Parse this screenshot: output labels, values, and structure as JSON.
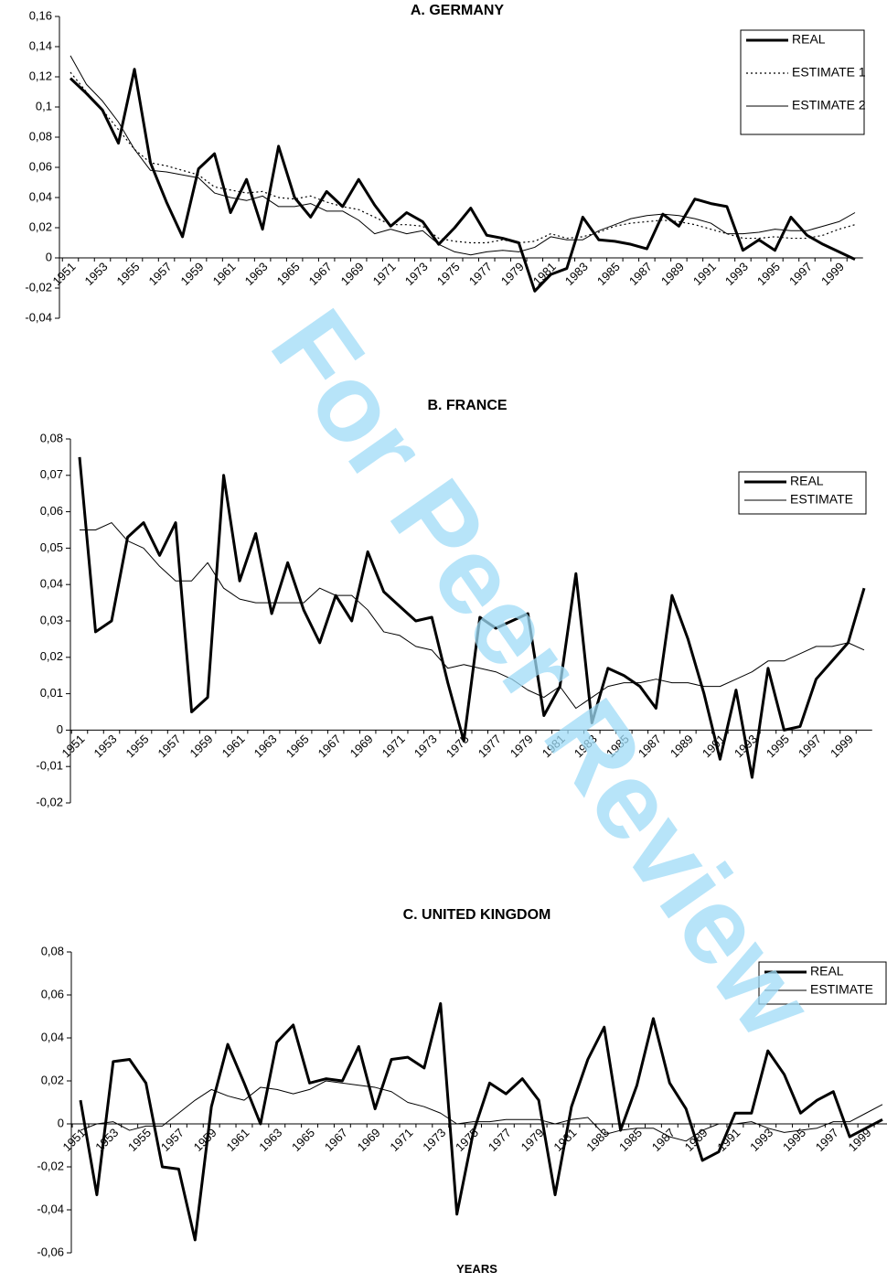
{
  "watermark": "For Peer Review",
  "chart_data": [
    {
      "type": "line",
      "title": "A. GERMANY",
      "legend": "upper right",
      "categories": [
        "1951",
        null,
        "1953",
        null,
        "1955",
        null,
        "1957",
        null,
        "1959",
        null,
        "1961",
        null,
        "1963",
        null,
        "1965",
        null,
        "1967",
        null,
        "1969",
        null,
        "1971",
        null,
        "1973",
        null,
        "1975",
        null,
        "1977",
        null,
        "1979",
        null,
        "1981",
        null,
        "1983",
        null,
        "1985",
        null,
        "1987",
        null,
        "1989",
        null,
        "1991",
        null,
        "1993",
        null,
        "1995",
        null,
        "1997",
        null,
        "1999",
        null
      ],
      "ylim": [
        -0.04,
        0.16
      ],
      "yticks": [
        {
          "value": -0.04,
          "label": "-0,04"
        },
        {
          "value": -0.02,
          "label": "-0,02"
        },
        0,
        {
          "value": 0.02,
          "label": "0,02"
        },
        {
          "value": 0.04,
          "label": "0,04"
        },
        {
          "value": 0.06,
          "label": "0,06"
        },
        {
          "value": 0.08,
          "label": "0,08"
        },
        {
          "value": 0.1,
          "label": "0,1"
        },
        {
          "value": 0.12,
          "label": "0,12"
        },
        {
          "value": 0.14,
          "label": "0,14"
        },
        {
          "value": 0.16,
          "label": "0,16"
        }
      ],
      "series": [
        {
          "name": "REAL",
          "color": "#000000",
          "style": "thick",
          "values": [
            0.119,
            0.109,
            0.098,
            0.076,
            0.125,
            0.063,
            0.037,
            0.014,
            0.059,
            0.069,
            0.03,
            0.052,
            0.019,
            0.074,
            0.04,
            0.027,
            0.044,
            0.034,
            0.052,
            0.035,
            0.021,
            0.03,
            0.024,
            0.009,
            0.02,
            0.033,
            0.015,
            0.013,
            0.01,
            -0.022,
            -0.011,
            -0.007,
            0.027,
            0.012,
            0.011,
            0.009,
            0.006,
            0.029,
            0.021,
            0.039,
            0.036,
            0.034,
            0.005,
            0.012,
            0.005,
            0.027,
            0.015,
            0.009,
            0.004,
            -0.001
          ]
        },
        {
          "name": "ESTIMATE 1",
          "color": "#000000",
          "style": "dotted",
          "values": [
            0.123,
            0.11,
            0.098,
            0.085,
            0.072,
            0.063,
            0.061,
            0.058,
            0.055,
            0.047,
            0.045,
            0.043,
            0.044,
            0.04,
            0.039,
            0.041,
            0.037,
            0.034,
            0.032,
            0.027,
            0.022,
            0.022,
            0.021,
            0.013,
            0.011,
            0.01,
            0.01,
            0.012,
            0.01,
            0.011,
            0.016,
            0.013,
            0.014,
            0.017,
            0.021,
            0.023,
            0.024,
            0.025,
            0.024,
            0.022,
            0.019,
            0.016,
            0.013,
            0.013,
            0.014,
            0.013,
            0.013,
            0.015,
            0.019,
            0.022
          ]
        },
        {
          "name": "ESTIMATE 2",
          "color": "#000000",
          "style": "thin",
          "values": [
            0.134,
            0.115,
            0.104,
            0.09,
            0.072,
            0.058,
            0.057,
            0.055,
            0.053,
            0.043,
            0.04,
            0.038,
            0.041,
            0.034,
            0.034,
            0.036,
            0.031,
            0.031,
            0.025,
            0.016,
            0.019,
            0.016,
            0.018,
            0.009,
            0.004,
            0.002,
            0.004,
            0.005,
            0.004,
            0.007,
            0.014,
            0.012,
            0.012,
            0.018,
            0.022,
            0.026,
            0.028,
            0.029,
            0.028,
            0.026,
            0.023,
            0.016,
            0.016,
            0.017,
            0.019,
            0.018,
            0.018,
            0.021,
            0.024,
            0.03
          ]
        }
      ]
    },
    {
      "type": "line",
      "title": "B. FRANCE",
      "legend": "upper right",
      "categories": [
        "1951",
        null,
        "1953",
        null,
        "1955",
        null,
        "1957",
        null,
        "1959",
        null,
        "1961",
        null,
        "1963",
        null,
        "1965",
        null,
        "1967",
        null,
        "1969",
        null,
        "1971",
        null,
        "1973",
        null,
        "1975",
        null,
        "1977",
        null,
        "1979",
        null,
        "1981",
        null,
        "1983",
        null,
        "1985",
        null,
        "1987",
        null,
        "1989",
        null,
        "1991",
        null,
        "1993",
        null,
        "1995",
        null,
        "1997",
        null,
        "1999",
        null
      ],
      "ylim": [
        -0.02,
        0.08
      ],
      "yticks": [
        {
          "value": -0.02,
          "label": "-0,02"
        },
        {
          "value": -0.01,
          "label": "-0,01"
        },
        0,
        {
          "value": 0.01,
          "label": "0,01"
        },
        {
          "value": 0.02,
          "label": "0,02"
        },
        {
          "value": 0.03,
          "label": "0,03"
        },
        {
          "value": 0.04,
          "label": "0,04"
        },
        {
          "value": 0.05,
          "label": "0,05"
        },
        {
          "value": 0.06,
          "label": "0,06"
        },
        {
          "value": 0.07,
          "label": "0,07"
        },
        {
          "value": 0.08,
          "label": "0,08"
        }
      ],
      "series": [
        {
          "name": "REAL",
          "color": "#000000",
          "style": "thick",
          "values": [
            0.075,
            0.027,
            0.03,
            0.053,
            0.057,
            0.048,
            0.057,
            0.005,
            0.009,
            0.07,
            0.041,
            0.054,
            0.032,
            0.046,
            0.033,
            0.024,
            0.037,
            0.03,
            0.049,
            0.038,
            0.034,
            0.03,
            0.031,
            0.013,
            -0.003,
            0.031,
            0.028,
            0.03,
            0.032,
            0.004,
            0.012,
            0.043,
            0.002,
            0.017,
            0.015,
            0.012,
            0.006,
            0.037,
            0.025,
            0.01,
            -0.008,
            0.011,
            -0.013,
            0.017,
            0.0,
            0.001,
            0.014,
            0.019,
            0.024,
            0.039
          ]
        },
        {
          "name": "ESTIMATE",
          "color": "#000000",
          "style": "thin",
          "values": [
            0.055,
            0.055,
            0.057,
            0.052,
            0.05,
            0.045,
            0.041,
            0.041,
            0.046,
            0.039,
            0.036,
            0.035,
            0.035,
            0.035,
            0.035,
            0.039,
            0.037,
            0.037,
            0.033,
            0.027,
            0.026,
            0.023,
            0.022,
            0.017,
            0.018,
            0.017,
            0.016,
            0.014,
            0.011,
            0.009,
            0.012,
            0.006,
            0.009,
            0.012,
            0.013,
            0.013,
            0.014,
            0.013,
            0.013,
            0.012,
            0.012,
            0.014,
            0.016,
            0.019,
            0.019,
            0.021,
            0.023,
            0.023,
            0.024,
            0.022
          ]
        }
      ]
    },
    {
      "type": "line",
      "title": "C. UNITED KINGDOM",
      "xlabel": "YEARS",
      "legend": "upper right",
      "categories": [
        "1951",
        null,
        "1953",
        null,
        "1955",
        null,
        "1957",
        null,
        "1959",
        null,
        "1961",
        null,
        "1963",
        null,
        "1965",
        null,
        "1967",
        null,
        "1969",
        null,
        "1971",
        null,
        "1973",
        null,
        "1975",
        null,
        "1977",
        null,
        "1979",
        null,
        "1981",
        null,
        "1983",
        null,
        "1985",
        null,
        "1987",
        null,
        "1989",
        null,
        "1991",
        null,
        "1993",
        null,
        "1995",
        null,
        "1997",
        null,
        "1999",
        null
      ],
      "ylim": [
        -0.06,
        0.08
      ],
      "yticks": [
        {
          "value": -0.06,
          "label": "-0,06"
        },
        {
          "value": -0.04,
          "label": "-0,04"
        },
        {
          "value": -0.02,
          "label": "-0,02"
        },
        0,
        {
          "value": 0.02,
          "label": "0,02"
        },
        {
          "value": 0.04,
          "label": "0,04"
        },
        {
          "value": 0.06,
          "label": "0,06"
        },
        {
          "value": 0.08,
          "label": "0,08"
        }
      ],
      "series": [
        {
          "name": "REAL",
          "color": "#000000",
          "style": "thick",
          "values": [
            0.011,
            -0.033,
            0.029,
            0.03,
            0.019,
            -0.02,
            -0.021,
            -0.054,
            0.008,
            0.037,
            0.019,
            0.0,
            0.038,
            0.046,
            0.019,
            0.021,
            0.02,
            0.036,
            0.007,
            0.03,
            0.031,
            0.026,
            0.056,
            -0.042,
            -0.004,
            0.019,
            0.014,
            0.021,
            0.011,
            -0.033,
            0.008,
            0.03,
            0.045,
            -0.003,
            0.018,
            0.049,
            0.019,
            0.007,
            -0.017,
            -0.013,
            0.005,
            0.005,
            0.034,
            0.023,
            0.005,
            0.011,
            0.015,
            -0.006,
            -0.002,
            0.002
          ]
        },
        {
          "name": "ESTIMATE",
          "color": "#000000",
          "style": "thin",
          "values": [
            -0.003,
            0.0,
            0.001,
            -0.003,
            -0.001,
            -0.001,
            0.005,
            0.011,
            0.016,
            0.013,
            0.011,
            0.017,
            0.016,
            0.014,
            0.016,
            0.02,
            0.019,
            0.018,
            0.017,
            0.015,
            0.01,
            0.008,
            0.005,
            0.0,
            0.001,
            0.001,
            0.002,
            0.002,
            0.002,
            0.0,
            0.002,
            0.003,
            -0.005,
            -0.003,
            -0.002,
            -0.002,
            -0.006,
            -0.008,
            -0.003,
            0.0,
            0.0,
            0.001,
            -0.002,
            -0.004,
            -0.003,
            -0.002,
            0.001,
            0.001,
            0.005,
            0.009
          ]
        }
      ]
    }
  ]
}
